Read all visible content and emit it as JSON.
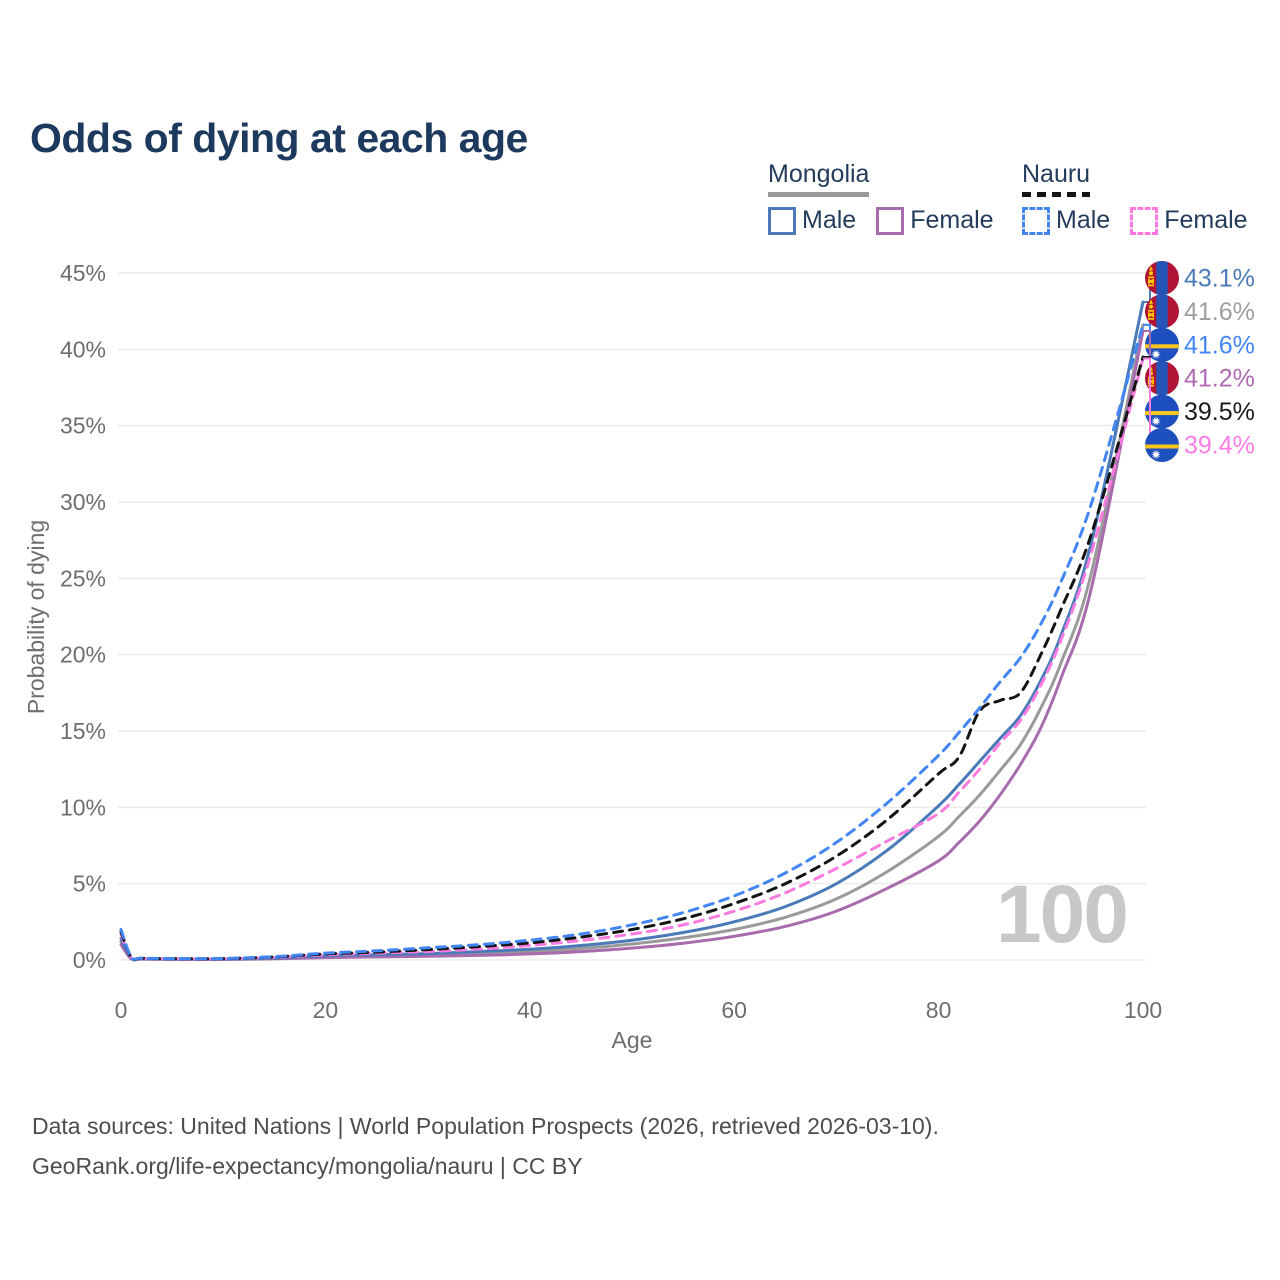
{
  "title": "Odds of dying at each age",
  "watermark_age": "100",
  "colors": {
    "title": "#1d3a5e",
    "legend_text": "#243c5c",
    "axis": "#6e6e6e",
    "grid": "#ebebeb",
    "watermark": "#c8c8c8",
    "footer": "#4d4d4d"
  },
  "legend": {
    "groups": [
      {
        "name": "Mongolia",
        "dashed": false,
        "underline_color": "#9a9a9a",
        "items": [
          {
            "label": "Male",
            "color": "#4b7ab9",
            "dashed": false
          },
          {
            "label": "Female",
            "color": "#a76bae",
            "dashed": false
          }
        ]
      },
      {
        "name": "Nauru",
        "dashed": true,
        "underline_color": "#141414",
        "items": [
          {
            "label": "Male",
            "color": "#4285f4",
            "dashed": true
          },
          {
            "label": "Female",
            "color": "#fa7ae0",
            "dashed": true
          }
        ]
      }
    ]
  },
  "chart_data": {
    "type": "line",
    "title": "Odds of dying at each age",
    "xlabel": "Age",
    "ylabel": "Probability of dying",
    "xlim": [
      0,
      100
    ],
    "ylim": [
      0,
      45
    ],
    "grid": "horizontal",
    "legend_position": "top-right",
    "x_ticks": [
      0,
      20,
      40,
      60,
      80,
      100
    ],
    "y_tick_values": [
      0,
      5,
      10,
      15,
      20,
      25,
      30,
      35,
      40,
      45
    ],
    "y_tick_labels": [
      "0%",
      "5%",
      "10%",
      "15%",
      "20%",
      "25%",
      "30%",
      "35%",
      "40%",
      "45%"
    ],
    "values_unit": "percent probability of dying at each age",
    "ages": [
      0,
      1,
      2,
      5,
      10,
      15,
      20,
      25,
      30,
      35,
      40,
      45,
      50,
      55,
      60,
      65,
      70,
      75,
      80,
      82,
      84,
      86,
      88,
      90,
      92,
      95,
      100
    ],
    "series": [
      {
        "name": "Mongolia Both sexes",
        "country": "Mongolia",
        "flag": "mongolia",
        "color": "#9a9a9a",
        "dashed": false,
        "label_color": "#9e9e9e",
        "end_label": "41.6%",
        "values": [
          1.2,
          0.1,
          0.07,
          0.05,
          0.05,
          0.1,
          0.22,
          0.28,
          0.33,
          0.42,
          0.55,
          0.75,
          1.05,
          1.45,
          2.0,
          2.8,
          4.0,
          5.8,
          8.1,
          9.4,
          10.8,
          12.4,
          14.1,
          16.5,
          19.5,
          25.5,
          41.6
        ]
      },
      {
        "name": "Mongolia Female",
        "country": "Mongolia",
        "flag": "mongolia",
        "color": "#a76bae",
        "dashed": false,
        "label_color": "#b06ab3",
        "end_label": "41.2%",
        "values": [
          1.0,
          0.08,
          0.06,
          0.04,
          0.04,
          0.08,
          0.16,
          0.2,
          0.24,
          0.3,
          0.4,
          0.55,
          0.78,
          1.1,
          1.55,
          2.2,
          3.2,
          4.7,
          6.5,
          7.7,
          9.1,
          10.8,
          12.8,
          15.2,
          18.5,
          24.5,
          41.2
        ]
      },
      {
        "name": "Mongolia Male",
        "country": "Mongolia",
        "flag": "mongolia",
        "color": "#4b7ab9",
        "dashed": false,
        "label_color": "#4b7ab9",
        "end_label": "43.1%",
        "values": [
          1.4,
          0.12,
          0.08,
          0.06,
          0.06,
          0.12,
          0.28,
          0.35,
          0.42,
          0.55,
          0.7,
          0.95,
          1.3,
          1.8,
          2.5,
          3.5,
          5.0,
          7.2,
          10.1,
          11.5,
          13.0,
          14.5,
          16.0,
          18.3,
          21.3,
          27.5,
          43.1
        ]
      },
      {
        "name": "Nauru Female",
        "country": "Nauru",
        "flag": "nauru",
        "color": "#fa7ae0",
        "dashed": true,
        "label_color": "#fb7ce5",
        "end_label": "39.4%",
        "values": [
          1.7,
          0.16,
          0.1,
          0.08,
          0.08,
          0.17,
          0.34,
          0.45,
          0.56,
          0.72,
          0.95,
          1.28,
          1.7,
          2.3,
          3.2,
          4.4,
          6.0,
          7.8,
          9.6,
          11.0,
          12.5,
          14.2,
          15.7,
          18.0,
          21.0,
          26.8,
          39.4
        ]
      },
      {
        "name": "Nauru Both sexes",
        "country": "Nauru",
        "flag": "nauru",
        "color": "#141414",
        "dashed": true,
        "label_color": "#1a1a1a",
        "end_label": "39.5%",
        "values": [
          1.85,
          0.18,
          0.11,
          0.09,
          0.09,
          0.2,
          0.4,
          0.52,
          0.68,
          0.88,
          1.12,
          1.5,
          2.0,
          2.7,
          3.7,
          5.0,
          6.8,
          9.2,
          12.2,
          13.3,
          16.3,
          17.0,
          17.5,
          20.0,
          23.0,
          28.0,
          39.5
        ]
      },
      {
        "name": "Nauru Male",
        "country": "Nauru",
        "flag": "nauru",
        "color": "#4285f4",
        "dashed": true,
        "label_color": "#4285f4",
        "end_label": "41.6%",
        "values": [
          2.0,
          0.2,
          0.12,
          0.1,
          0.1,
          0.22,
          0.45,
          0.6,
          0.8,
          1.0,
          1.3,
          1.7,
          2.3,
          3.1,
          4.2,
          5.7,
          7.7,
          10.3,
          13.4,
          14.9,
          16.5,
          18.2,
          19.8,
          22.0,
          24.8,
          30.0,
          41.6
        ]
      }
    ]
  },
  "flags": {
    "mongolia": {
      "red": "#b11535",
      "blue": "#2553b8",
      "yellow": "#ffcc00"
    },
    "nauru": {
      "blue": "#1d4fbe",
      "stripe": "#ffc61e",
      "star": "#ffffff"
    }
  },
  "footer": {
    "line1": "Data sources: United Nations | World Population Prospects (2026, retrieved 2026-03-10).",
    "line2": "GeoRank.org/life-expectancy/mongolia/nauru | CC BY"
  }
}
